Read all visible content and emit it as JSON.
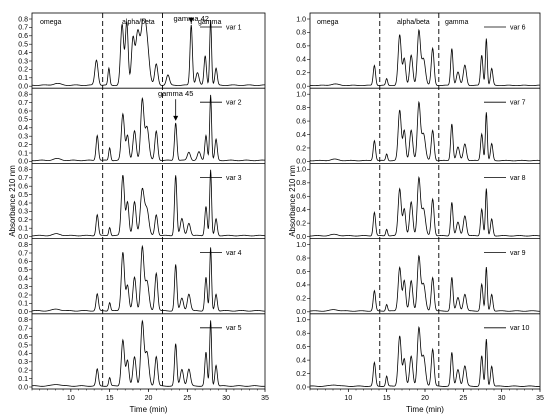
{
  "chart_data": [
    {
      "type": "line",
      "panel": "left",
      "xlabel": "Time (min)",
      "ylabel": "Absorbance 210 nm",
      "xlim": [
        5,
        35
      ],
      "ylim": [
        0,
        0.8
      ],
      "x_ticks": [
        "10",
        "15",
        "20",
        "25",
        "30",
        "35"
      ],
      "y_ticks": [
        "0.0",
        "0.1",
        "0.2",
        "0.3",
        "0.4",
        "0.5",
        "0.6",
        "0.7",
        "0.8"
      ],
      "vlines": [
        14.1,
        21.8
      ],
      "regions": [
        "omega",
        "alpha/beta",
        "gamma"
      ],
      "series": [
        {
          "name": "var 1",
          "peaks": [
            [
              13.3,
              0.3,
              0.2
            ],
            [
              14.9,
              0.2,
              0.12
            ],
            [
              16.6,
              0.72,
              0.2
            ],
            [
              17.2,
              0.75,
              0.18
            ],
            [
              18.0,
              0.55,
              0.2
            ],
            [
              18.6,
              0.6,
              0.25
            ],
            [
              19.3,
              0.7,
              0.3
            ],
            [
              19.8,
              0.45,
              0.3
            ],
            [
              21.0,
              0.25,
              0.2
            ],
            [
              22.5,
              0.12,
              0.2
            ],
            [
              25.5,
              0.72,
              0.15
            ],
            [
              26.3,
              0.15,
              0.2
            ],
            [
              27.3,
              0.35,
              0.15
            ],
            [
              28.0,
              0.78,
              0.12
            ],
            [
              28.7,
              0.2,
              0.15
            ]
          ]
        },
        {
          "name": "var 2",
          "peaks": [
            [
              13.4,
              0.3,
              0.15
            ],
            [
              15.0,
              0.15,
              0.12
            ],
            [
              16.7,
              0.55,
              0.2
            ],
            [
              17.3,
              0.3,
              0.18
            ],
            [
              18.2,
              0.35,
              0.2
            ],
            [
              19.2,
              0.72,
              0.2
            ],
            [
              19.8,
              0.4,
              0.25
            ],
            [
              21.0,
              0.35,
              0.18
            ],
            [
              23.5,
              0.45,
              0.15
            ],
            [
              25.2,
              0.1,
              0.2
            ],
            [
              26.5,
              0.1,
              0.2
            ],
            [
              27.4,
              0.3,
              0.15
            ],
            [
              28.0,
              0.78,
              0.12
            ],
            [
              28.7,
              0.25,
              0.15
            ]
          ]
        },
        {
          "name": "var 3",
          "peaks": [
            [
              13.4,
              0.25,
              0.15
            ],
            [
              15.0,
              0.1,
              0.12
            ],
            [
              16.7,
              0.72,
              0.2
            ],
            [
              17.3,
              0.4,
              0.18
            ],
            [
              18.2,
              0.4,
              0.2
            ],
            [
              19.2,
              0.55,
              0.25
            ],
            [
              19.8,
              0.3,
              0.25
            ],
            [
              21.0,
              0.25,
              0.18
            ],
            [
              23.5,
              0.72,
              0.15
            ],
            [
              24.3,
              0.2,
              0.2
            ],
            [
              25.2,
              0.15,
              0.2
            ],
            [
              27.4,
              0.35,
              0.15
            ],
            [
              28.0,
              0.78,
              0.12
            ],
            [
              28.7,
              0.2,
              0.15
            ]
          ]
        },
        {
          "name": "var 4",
          "peaks": [
            [
              13.4,
              0.2,
              0.15
            ],
            [
              15.0,
              0.1,
              0.12
            ],
            [
              16.7,
              0.7,
              0.2
            ],
            [
              17.3,
              0.3,
              0.18
            ],
            [
              18.2,
              0.4,
              0.2
            ],
            [
              19.2,
              0.75,
              0.2
            ],
            [
              19.8,
              0.35,
              0.25
            ],
            [
              21.0,
              0.45,
              0.18
            ],
            [
              23.5,
              0.55,
              0.15
            ],
            [
              24.3,
              0.15,
              0.2
            ],
            [
              25.2,
              0.2,
              0.2
            ],
            [
              27.4,
              0.4,
              0.15
            ],
            [
              28.0,
              0.75,
              0.12
            ],
            [
              28.7,
              0.2,
              0.15
            ]
          ]
        },
        {
          "name": "var 5",
          "peaks": [
            [
              13.4,
              0.2,
              0.15
            ],
            [
              15.0,
              0.1,
              0.12
            ],
            [
              16.7,
              0.55,
              0.2
            ],
            [
              17.3,
              0.3,
              0.18
            ],
            [
              18.2,
              0.35,
              0.2
            ],
            [
              19.2,
              0.75,
              0.2
            ],
            [
              19.8,
              0.4,
              0.25
            ],
            [
              21.0,
              0.35,
              0.18
            ],
            [
              23.5,
              0.5,
              0.15
            ],
            [
              24.3,
              0.2,
              0.2
            ],
            [
              25.2,
              0.2,
              0.2
            ],
            [
              27.4,
              0.4,
              0.15
            ],
            [
              28.0,
              0.78,
              0.12
            ],
            [
              28.7,
              0.25,
              0.15
            ]
          ]
        }
      ],
      "annotations": [
        {
          "text": "gamma 42",
          "series": "var 1",
          "x": 25.5,
          "y": 0.74
        },
        {
          "text": "gamma 45",
          "series": "var 2",
          "x": 23.5,
          "y": 0.47
        }
      ]
    },
    {
      "type": "line",
      "panel": "right",
      "xlabel": "Time (min)",
      "ylabel": "Absorbance 210 nm",
      "xlim": [
        5,
        35
      ],
      "ylim": [
        0,
        1.0
      ],
      "x_ticks": [
        "10",
        "15",
        "20",
        "25",
        "30",
        "35"
      ],
      "y_ticks": [
        "0.0",
        "0.2",
        "0.4",
        "0.6",
        "0.8",
        "1.0"
      ],
      "vlines": [
        14.1,
        21.8
      ],
      "regions": [
        "omega",
        "alpha/beta",
        "gamma"
      ],
      "series": [
        {
          "name": "var 6",
          "peaks": [
            [
              13.4,
              0.3,
              0.15
            ],
            [
              15.0,
              0.1,
              0.12
            ],
            [
              16.7,
              0.75,
              0.2
            ],
            [
              17.3,
              0.4,
              0.18
            ],
            [
              18.2,
              0.45,
              0.2
            ],
            [
              19.2,
              0.8,
              0.2
            ],
            [
              19.8,
              0.4,
              0.25
            ],
            [
              21.0,
              0.55,
              0.18
            ],
            [
              23.5,
              0.55,
              0.15
            ],
            [
              24.3,
              0.2,
              0.2
            ],
            [
              25.2,
              0.3,
              0.2
            ],
            [
              27.4,
              0.45,
              0.15
            ],
            [
              28.0,
              0.7,
              0.12
            ],
            [
              28.7,
              0.25,
              0.15
            ]
          ]
        },
        {
          "name": "var 7",
          "peaks": [
            [
              13.4,
              0.3,
              0.15
            ],
            [
              15.0,
              0.1,
              0.12
            ],
            [
              16.7,
              0.75,
              0.2
            ],
            [
              17.3,
              0.45,
              0.18
            ],
            [
              18.2,
              0.45,
              0.2
            ],
            [
              19.2,
              0.85,
              0.2
            ],
            [
              19.8,
              0.4,
              0.25
            ],
            [
              21.0,
              0.45,
              0.18
            ],
            [
              23.5,
              0.55,
              0.15
            ],
            [
              24.3,
              0.2,
              0.2
            ],
            [
              25.2,
              0.25,
              0.2
            ],
            [
              27.4,
              0.4,
              0.15
            ],
            [
              28.0,
              0.72,
              0.12
            ],
            [
              28.7,
              0.25,
              0.15
            ]
          ]
        },
        {
          "name": "var 8",
          "peaks": [
            [
              13.4,
              0.35,
              0.15
            ],
            [
              15.0,
              0.1,
              0.12
            ],
            [
              16.7,
              0.7,
              0.2
            ],
            [
              17.3,
              0.4,
              0.18
            ],
            [
              18.2,
              0.5,
              0.2
            ],
            [
              19.2,
              0.85,
              0.2
            ],
            [
              19.8,
              0.4,
              0.25
            ],
            [
              21.0,
              0.55,
              0.18
            ],
            [
              23.5,
              0.5,
              0.15
            ],
            [
              24.3,
              0.2,
              0.2
            ],
            [
              25.2,
              0.3,
              0.2
            ],
            [
              27.4,
              0.4,
              0.15
            ],
            [
              28.0,
              0.7,
              0.12
            ],
            [
              28.7,
              0.25,
              0.15
            ]
          ]
        },
        {
          "name": "var 9",
          "peaks": [
            [
              13.4,
              0.3,
              0.15
            ],
            [
              15.0,
              0.1,
              0.12
            ],
            [
              16.7,
              0.65,
              0.2
            ],
            [
              17.3,
              0.45,
              0.18
            ],
            [
              18.2,
              0.45,
              0.2
            ],
            [
              19.2,
              0.8,
              0.2
            ],
            [
              19.8,
              0.4,
              0.25
            ],
            [
              21.0,
              0.5,
              0.18
            ],
            [
              23.5,
              0.5,
              0.15
            ],
            [
              24.3,
              0.2,
              0.2
            ],
            [
              25.2,
              0.25,
              0.2
            ],
            [
              27.4,
              0.4,
              0.15
            ],
            [
              28.0,
              0.65,
              0.12
            ],
            [
              28.7,
              0.25,
              0.15
            ]
          ]
        },
        {
          "name": "var 10",
          "peaks": [
            [
              13.4,
              0.35,
              0.15
            ],
            [
              15.0,
              0.15,
              0.12
            ],
            [
              16.7,
              0.75,
              0.2
            ],
            [
              17.3,
              0.4,
              0.18
            ],
            [
              18.2,
              0.45,
              0.2
            ],
            [
              19.2,
              0.85,
              0.2
            ],
            [
              19.8,
              0.45,
              0.25
            ],
            [
              21.0,
              0.55,
              0.18
            ],
            [
              23.5,
              0.5,
              0.15
            ],
            [
              24.3,
              0.25,
              0.2
            ],
            [
              25.2,
              0.3,
              0.2
            ],
            [
              27.4,
              0.45,
              0.15
            ],
            [
              28.0,
              0.7,
              0.12
            ],
            [
              28.7,
              0.3,
              0.15
            ]
          ]
        }
      ],
      "annotations": []
    }
  ]
}
